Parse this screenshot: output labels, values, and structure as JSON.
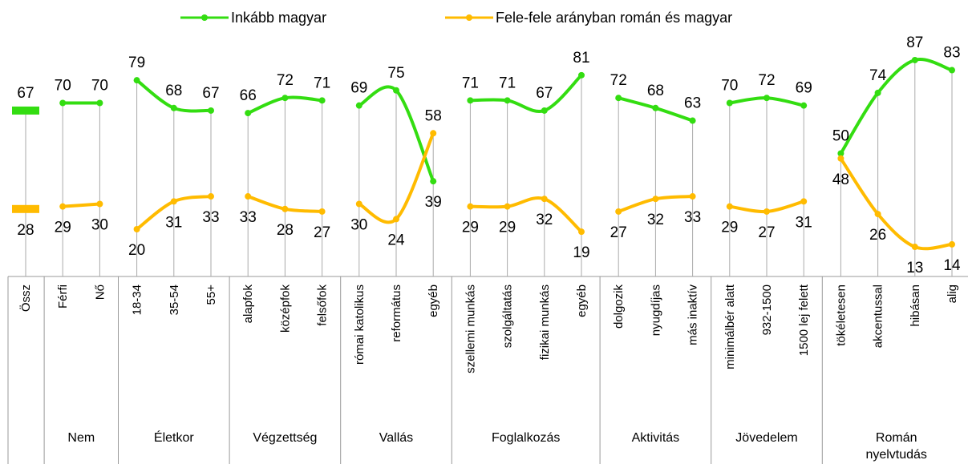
{
  "chart_data": {
    "type": "line",
    "groups": [
      {
        "name": null,
        "categories": [
          "Össz"
        ]
      },
      {
        "name": "Nem",
        "categories": [
          "Férfi",
          "Nő"
        ]
      },
      {
        "name": "Életkor",
        "categories": [
          "18-34",
          "35-54",
          "55+"
        ]
      },
      {
        "name": "Végzettség",
        "categories": [
          "alapfok",
          "középfok",
          "felsőfok"
        ]
      },
      {
        "name": "Vallás",
        "categories": [
          "római katolikus",
          "református",
          "egyéb"
        ]
      },
      {
        "name": "Foglalkozás",
        "categories": [
          "szellemi munkás",
          "szolgáltatás",
          "fizikai munkás",
          "egyéb"
        ]
      },
      {
        "name": "Aktivitás",
        "categories": [
          "dolgozik",
          "nyugdíjas",
          "más inaktív"
        ]
      },
      {
        "name": "Jövedelem",
        "categories": [
          "minimálbér alatt",
          "932-1500",
          "1500 lej felett"
        ]
      },
      {
        "name": "Román nyelvtudás",
        "categories": [
          "tökéletesen",
          "akcentussal",
          "hibásan",
          "alig"
        ]
      }
    ],
    "series": [
      {
        "name": "Inkább magyar",
        "color": "#33dd11",
        "values": [
          67,
          70,
          70,
          79,
          68,
          67,
          66,
          72,
          71,
          69,
          75,
          39,
          71,
          71,
          67,
          81,
          72,
          68,
          63,
          70,
          72,
          69,
          50,
          74,
          87,
          83
        ]
      },
      {
        "name": "Fele-fele arányban román és magyar",
        "color": "#ffbb00",
        "values": [
          28,
          29,
          30,
          20,
          31,
          33,
          33,
          28,
          27,
          30,
          24,
          58,
          29,
          29,
          32,
          19,
          27,
          32,
          33,
          29,
          27,
          31,
          48,
          26,
          13,
          14
        ]
      }
    ],
    "ylim": [
      0,
      110
    ]
  }
}
